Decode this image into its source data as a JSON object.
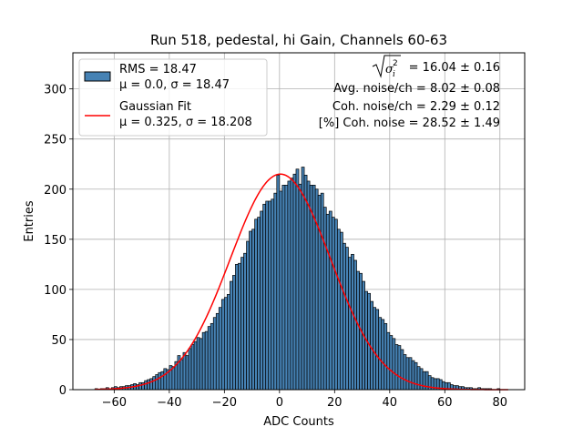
{
  "chart_data": {
    "type": "bar",
    "title": "Run 518, pedestal, hi Gain, Channels 60-63",
    "xlabel": "ADC Counts",
    "ylabel": "Entries",
    "xlim": [
      -75,
      89
    ],
    "ylim": [
      0,
      336
    ],
    "xticks": [
      -60,
      -40,
      -20,
      0,
      20,
      40,
      60,
      80
    ],
    "yticks": [
      0,
      50,
      100,
      150,
      200,
      250,
      300
    ],
    "grid": true,
    "bin_width": 1,
    "histogram": {
      "name": "RMS = 18.47",
      "stats_label": "μ = 0.0, σ = 18.47",
      "color": "#4682b4",
      "edge_color": "#000000",
      "bin_start": -67,
      "counts": [
        1,
        0,
        1,
        1,
        2,
        1,
        2,
        3,
        2,
        3,
        3,
        4,
        4,
        5,
        6,
        5,
        7,
        7,
        9,
        10,
        11,
        13,
        15,
        17,
        18,
        21,
        20,
        24,
        23,
        28,
        34,
        30,
        37,
        34,
        41,
        45,
        48,
        52,
        51,
        57,
        58,
        63,
        66,
        72,
        76,
        82,
        90,
        92,
        95,
        108,
        114,
        125,
        126,
        132,
        136,
        148,
        158,
        160,
        170,
        172,
        178,
        185,
        188,
        188,
        190,
        196,
        214,
        198,
        204,
        204,
        208,
        211,
        215,
        220,
        205,
        222,
        214,
        208,
        204,
        204,
        200,
        194,
        196,
        182,
        175,
        178,
        172,
        170,
        160,
        157,
        146,
        142,
        132,
        135,
        129,
        118,
        116,
        108,
        98,
        96,
        88,
        82,
        80,
        72,
        70,
        66,
        57,
        54,
        51,
        45,
        44,
        40,
        35,
        32,
        32,
        29,
        27,
        23,
        21,
        18,
        18,
        14,
        12,
        11,
        11,
        10,
        8,
        7,
        7,
        5,
        4,
        4,
        3,
        3,
        2,
        2,
        2,
        1,
        1,
        2,
        1,
        1,
        1,
        1,
        0,
        0,
        1,
        0,
        0,
        0,
        0
      ]
    },
    "fit": {
      "name": "Gaussian Fit",
      "stats_label": "μ = 0.325, σ = 18.208",
      "type": "gaussian",
      "mu": 0.325,
      "sigma": 18.208,
      "amplitude": 215,
      "x_range": [
        -67,
        83
      ],
      "color": "#ff0000"
    },
    "legend_position": "upper left",
    "annotations": {
      "sigma_value": "= 16.04 ± 0.16",
      "avg_noise": "Avg. noise/ch = 8.02 ± 0.08",
      "coh_noise": "Coh. noise/ch = 2.29 ± 0.12",
      "coh_percent": "[%] Coh. noise = 28.52 ± 1.49"
    }
  }
}
